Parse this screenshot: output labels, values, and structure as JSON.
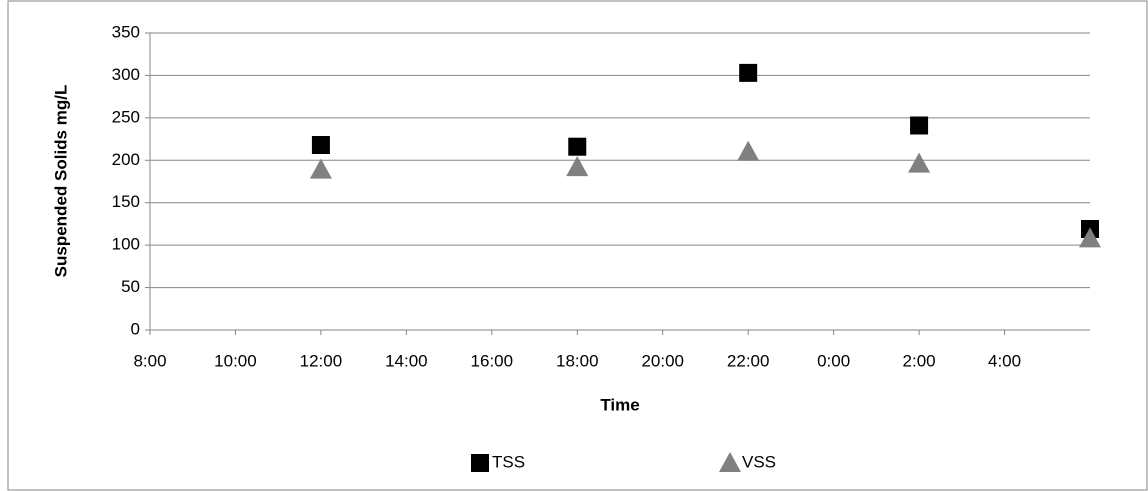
{
  "chart_data": {
    "type": "scatter",
    "x_label": "Time",
    "y_label": "Suspended Solids mg/L",
    "xlim": [
      8,
      30
    ],
    "xticks": [
      {
        "value": 8,
        "label": "8:00"
      },
      {
        "value": 10,
        "label": "10:00"
      },
      {
        "value": 12,
        "label": "12:00"
      },
      {
        "value": 14,
        "label": "14:00"
      },
      {
        "value": 16,
        "label": "16:00"
      },
      {
        "value": 18,
        "label": "18:00"
      },
      {
        "value": 20,
        "label": "20:00"
      },
      {
        "value": 22,
        "label": "22:00"
      },
      {
        "value": 24,
        "label": "0:00"
      },
      {
        "value": 26,
        "label": "2:00"
      },
      {
        "value": 28,
        "label": "4:00"
      }
    ],
    "ylim": [
      0,
      350
    ],
    "yticks": [
      0,
      50,
      100,
      150,
      200,
      250,
      300,
      350
    ],
    "grid": true,
    "legend": "bottom",
    "series": [
      {
        "name": "TSS",
        "color": "#000000",
        "marker": "square",
        "x": [
          12,
          18,
          22,
          26,
          30
        ],
        "values": [
          218,
          216,
          303,
          241,
          119
        ]
      },
      {
        "name": "VSS",
        "color": "#808080",
        "marker": "triangle",
        "x": [
          12,
          18,
          22,
          26,
          30
        ],
        "values": [
          189,
          192,
          210,
          196,
          108
        ]
      }
    ]
  }
}
